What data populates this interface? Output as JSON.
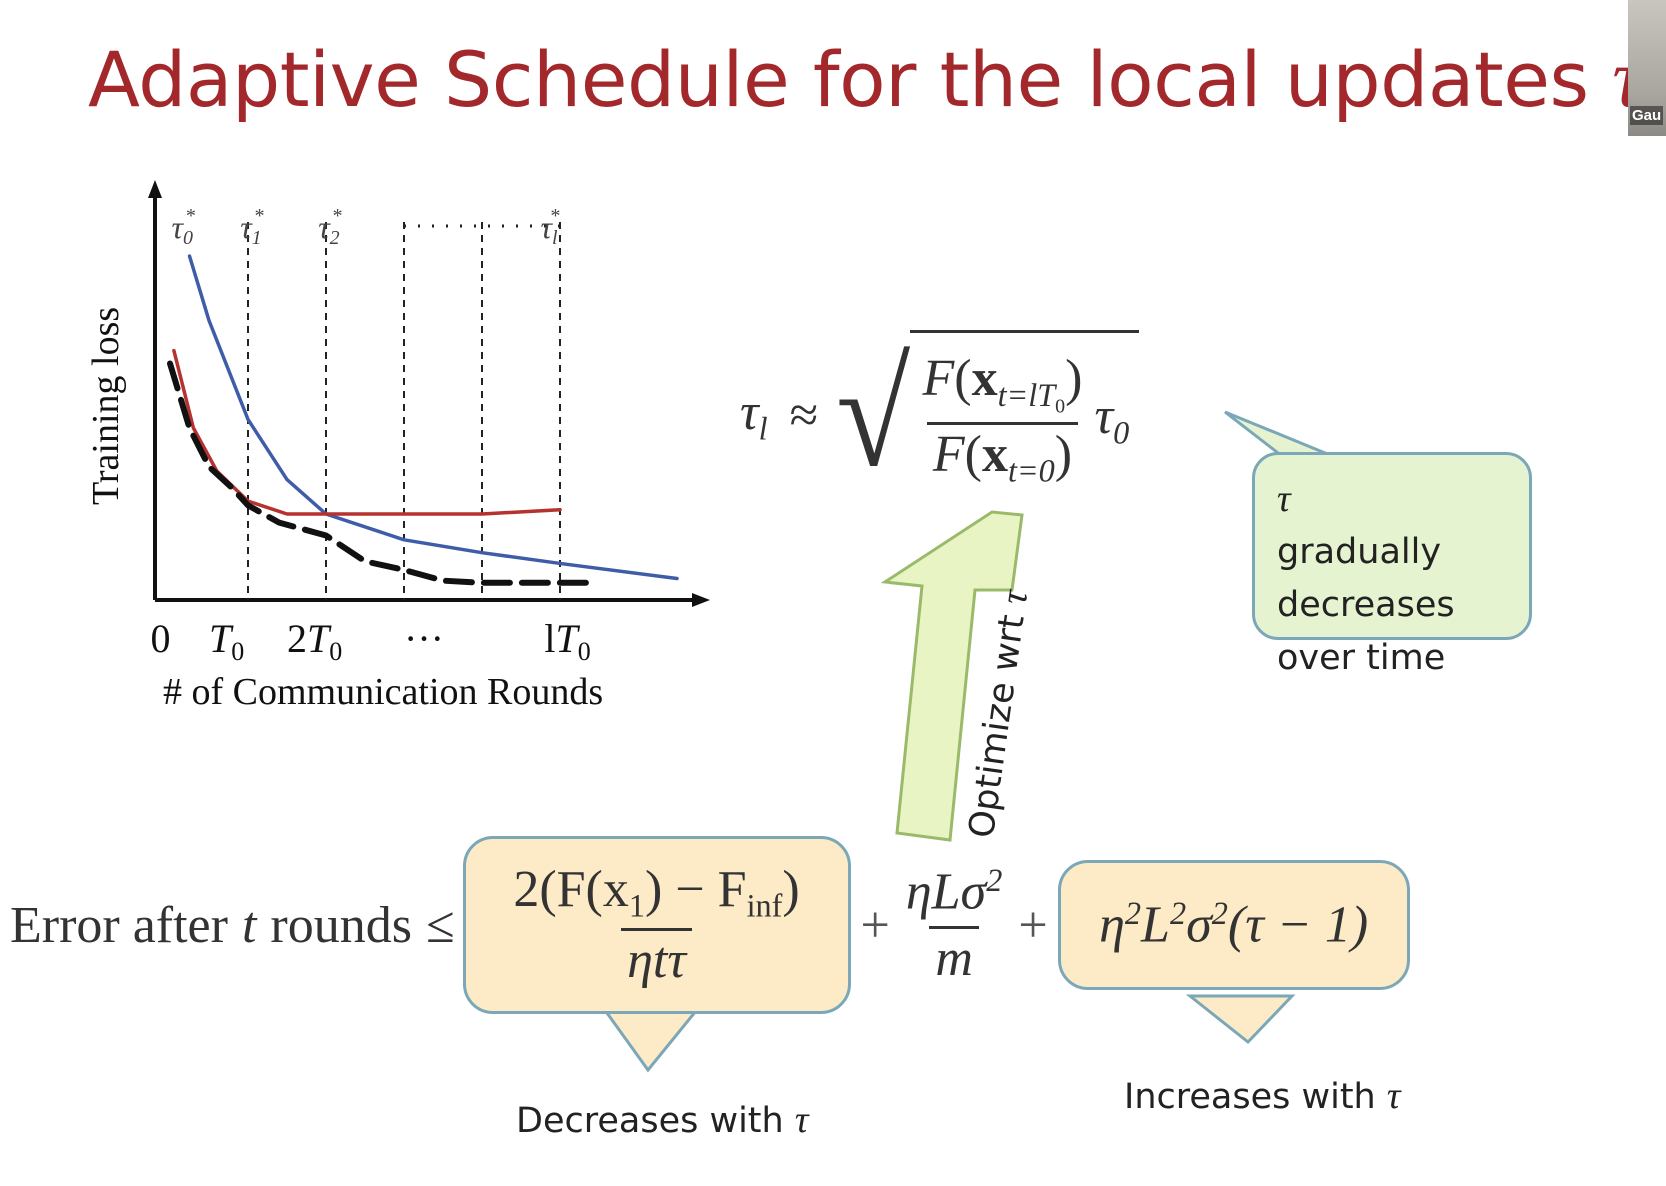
{
  "slide": {
    "title": "Adaptive Schedule for the local updates",
    "title_symbol": "τ",
    "title_color": "#a3282b"
  },
  "webcam": {
    "name": "Gau"
  },
  "chart_data": {
    "type": "line",
    "xlabel": "# of Communication Rounds",
    "ylabel": "Training loss",
    "x_ticks": [
      "0",
      "T0",
      "2T0",
      "···",
      "lT0"
    ],
    "interval_labels": [
      "τ0*",
      "τ1*",
      "τ2*",
      "τl*"
    ],
    "series": [
      {
        "color": "#3f5ca8",
        "x": [
          0.25,
          0.5,
          1,
          1.5,
          2,
          3,
          4,
          5,
          6.5
        ],
        "y": [
          0.8,
          0.65,
          0.42,
          0.28,
          0.2,
          0.14,
          0.11,
          0.085,
          0.05
        ]
      },
      {
        "color": "#b5322e",
        "x": [
          0.05,
          0.3,
          0.6,
          1,
          1.5,
          2,
          3,
          4,
          5
        ],
        "y": [
          0.58,
          0.4,
          0.3,
          0.23,
          0.2,
          0.2,
          0.2,
          0.2,
          0.21
        ]
      },
      {
        "color": "#111111",
        "x": [
          0,
          0.25,
          0.5,
          0.8,
          1,
          1.4,
          2,
          2.5,
          3,
          3.5,
          4,
          5.4
        ],
        "y": [
          0.55,
          0.4,
          0.31,
          0.26,
          0.22,
          0.18,
          0.15,
          0.09,
          0.07,
          0.045,
          0.04,
          0.04
        ]
      }
    ],
    "grid": false,
    "legend": "none"
  },
  "formula_tau": {
    "lhs": "τ",
    "lhs_sub": "l",
    "approx": "≈",
    "num_F": "F",
    "num_x": "x",
    "num_sub": "t=lT",
    "num_sub_sub": "0",
    "den_F": "F",
    "den_x": "x",
    "den_sub": "t=0",
    "factor": "τ",
    "factor_sub": "0"
  },
  "callout_green": {
    "symbol": "τ",
    "line1": "gradually",
    "line2": "decreases",
    "line3": "over time"
  },
  "arrow": {
    "label": "Optimize wrt",
    "symbol": "τ"
  },
  "error_bound": {
    "prefix": "Error after",
    "t": "t",
    "rounds": "rounds",
    "leq": "≤",
    "term1_num": "2(F(x",
    "term1_num_sub": "1",
    "term1_num_mid": ") − F",
    "term1_num_sub2": "inf",
    "term1_num_end": ")",
    "term1_den": "ηtτ",
    "term2_num": "ηLσ",
    "term2_num_sup": "2",
    "term2_den": "m",
    "term3": "η",
    "term3_sup1": "2",
    "term3_L": "L",
    "term3_sup2": "2",
    "term3_sigma": "σ",
    "term3_sup3": "2",
    "term3_end": "(τ − 1)",
    "plus": "+"
  },
  "labels": {
    "decreases": "Decreases with",
    "increases": "Increases with",
    "symbol": "τ"
  },
  "colors": {
    "box_fill": "#fcebc6",
    "box_stroke": "#7ba7b8",
    "green_fill": "#e6f3d0",
    "arrow_fill": "#e8f4c4",
    "arrow_stroke": "#9aba6a"
  }
}
